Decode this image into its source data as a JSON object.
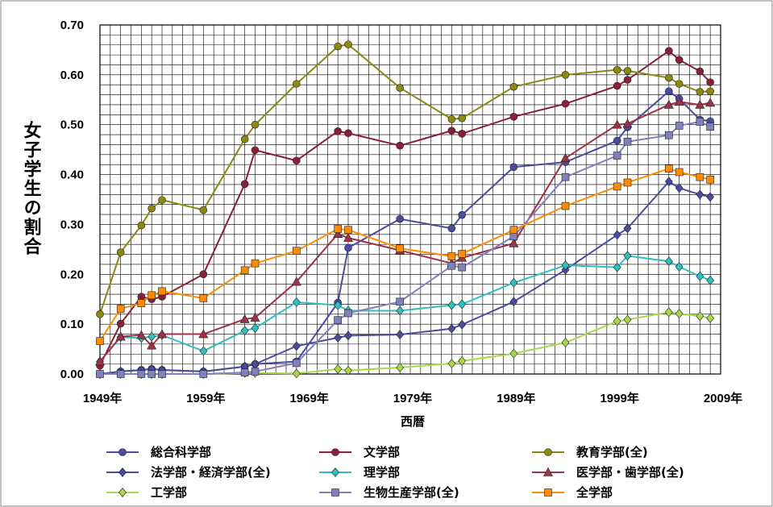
{
  "chart_data": {
    "type": "line",
    "xlabel": "西暦",
    "ylabel": "女子学生の割合",
    "xlim": [
      1949,
      2009
    ],
    "ylim": [
      0,
      0.7
    ],
    "x_tick_values": [
      1949,
      1959,
      1969,
      1979,
      1989,
      1999,
      2009
    ],
    "x_tick_labels": [
      "1949年",
      "1959年",
      "1969年",
      "1979年",
      "1989年",
      "1999年",
      "2009年"
    ],
    "y_tick_values": [
      0,
      0.1,
      0.2,
      0.3,
      0.4,
      0.5,
      0.6,
      0.7
    ],
    "y_tick_labels": [
      "0.00",
      "0.10",
      "0.20",
      "0.30",
      "0.40",
      "0.50",
      "0.60",
      "0.70"
    ],
    "grid": true,
    "legend_position": "bottom",
    "series": [
      {
        "name": "総合科学部",
        "color": "#4B4BA0",
        "marker": "circle",
        "x": [
          1949,
          1951,
          1953,
          1954,
          1955,
          1959,
          1963,
          1964,
          1968,
          1972,
          1973,
          1978,
          1983,
          1984,
          1989,
          1994,
          1999,
          2000,
          2004,
          2005,
          2007,
          2008
        ],
        "y": [
          0,
          0.005,
          0.008,
          0.01,
          0.008,
          0.005,
          0.015,
          0.02,
          0.025,
          0.143,
          0.253,
          0.311,
          0.292,
          0.319,
          0.415,
          0.425,
          0.468,
          0.495,
          0.567,
          0.552,
          0.51,
          0.507
        ]
      },
      {
        "name": "文学部",
        "color": "#8B1F3A",
        "marker": "circle",
        "x": [
          1949,
          1951,
          1953,
          1954,
          1955,
          1959,
          1963,
          1964,
          1968,
          1972,
          1973,
          1978,
          1983,
          1984,
          1989,
          1994,
          1999,
          2000,
          2004,
          2005,
          2007,
          2008
        ],
        "y": [
          0.017,
          0.101,
          0.155,
          0.15,
          0.155,
          0.2,
          0.381,
          0.449,
          0.428,
          0.487,
          0.483,
          0.458,
          0.488,
          0.482,
          0.516,
          0.542,
          0.578,
          0.59,
          0.648,
          0.63,
          0.607,
          0.585
        ]
      },
      {
        "name": "教育学部(全)",
        "color": "#8A8A10",
        "marker": "circle",
        "x": [
          1949,
          1951,
          1953,
          1954,
          1955,
          1959,
          1963,
          1964,
          1968,
          1972,
          1973,
          1978,
          1983,
          1984,
          1989,
          1994,
          1999,
          2000,
          2004,
          2005,
          2007,
          2008
        ],
        "y": [
          0.12,
          0.244,
          0.298,
          0.332,
          0.349,
          0.329,
          0.471,
          0.5,
          0.582,
          0.657,
          0.661,
          0.574,
          0.511,
          0.513,
          0.576,
          0.6,
          0.61,
          0.608,
          0.594,
          0.582,
          0.566,
          0.567
        ]
      },
      {
        "name": "法学部・経済学部(全)",
        "color": "#4B4BA0",
        "marker": "diamond",
        "x": [
          1949,
          1951,
          1953,
          1954,
          1955,
          1959,
          1963,
          1964,
          1968,
          1972,
          1973,
          1978,
          1983,
          1984,
          1989,
          1994,
          1999,
          2000,
          2004,
          2005,
          2007,
          2008
        ],
        "y": [
          0,
          0.005,
          0.008,
          0.01,
          0.008,
          0.005,
          0.015,
          0.02,
          0.056,
          0.073,
          0.077,
          0.079,
          0.091,
          0.099,
          0.145,
          0.209,
          0.279,
          0.292,
          0.386,
          0.373,
          0.36,
          0.355
        ]
      },
      {
        "name": "理学部",
        "color": "#2FBFBF",
        "marker": "diamond",
        "x": [
          1949,
          1951,
          1953,
          1954,
          1955,
          1959,
          1963,
          1964,
          1968,
          1972,
          1973,
          1978,
          1983,
          1984,
          1989,
          1994,
          1999,
          2000,
          2004,
          2005,
          2007,
          2008
        ],
        "y": [
          0.025,
          0.074,
          0.072,
          0.075,
          0.078,
          0.046,
          0.087,
          0.092,
          0.144,
          0.138,
          0.127,
          0.127,
          0.138,
          0.14,
          0.183,
          0.218,
          0.214,
          0.237,
          0.226,
          0.215,
          0.196,
          0.188
        ]
      },
      {
        "name": "医学部・歯学部(全)",
        "color": "#A03248",
        "marker": "triangle",
        "x": [
          1949,
          1951,
          1953,
          1954,
          1955,
          1959,
          1963,
          1964,
          1968,
          1972,
          1973,
          1978,
          1983,
          1984,
          1989,
          1994,
          1999,
          2000,
          2004,
          2005,
          2007,
          2008
        ],
        "y": [
          0.025,
          0.075,
          0.078,
          0.057,
          0.08,
          0.08,
          0.11,
          0.113,
          0.185,
          0.281,
          0.273,
          0.248,
          0.222,
          0.233,
          0.262,
          0.433,
          0.5,
          0.502,
          0.54,
          0.546,
          0.54,
          0.544
        ]
      },
      {
        "name": "工学部",
        "color": "#A6D84A",
        "marker": "diamond",
        "x": [
          1949,
          1951,
          1953,
          1954,
          1955,
          1959,
          1963,
          1964,
          1968,
          1972,
          1973,
          1978,
          1983,
          1984,
          1989,
          1994,
          1999,
          2000,
          2004,
          2005,
          2007,
          2008
        ],
        "y": [
          0,
          0,
          0,
          0,
          0,
          0,
          0.002,
          0.002,
          0.001,
          0.01,
          0.007,
          0.013,
          0.021,
          0.026,
          0.041,
          0.063,
          0.106,
          0.109,
          0.124,
          0.121,
          0.116,
          0.112
        ]
      },
      {
        "name": "生物生産学部(全)",
        "color": "#8080BC",
        "marker": "square",
        "x": [
          1949,
          1951,
          1953,
          1954,
          1955,
          1959,
          1963,
          1964,
          1968,
          1972,
          1973,
          1978,
          1983,
          1984,
          1989,
          1994,
          1999,
          2000,
          2004,
          2005,
          2007,
          2008
        ],
        "y": [
          0,
          0,
          0,
          0,
          0,
          0,
          0.003,
          0.005,
          0.022,
          0.108,
          0.122,
          0.145,
          0.217,
          0.214,
          0.276,
          0.395,
          0.438,
          0.466,
          0.479,
          0.498,
          0.506,
          0.496
        ]
      },
      {
        "name": "全学部",
        "color": "#FF8C00",
        "marker": "square",
        "x": [
          1949,
          1951,
          1953,
          1954,
          1955,
          1959,
          1963,
          1964,
          1968,
          1972,
          1973,
          1978,
          1983,
          1984,
          1989,
          1994,
          1999,
          2000,
          2004,
          2005,
          2007,
          2008
        ],
        "y": [
          0.066,
          0.131,
          0.142,
          0.158,
          0.166,
          0.152,
          0.208,
          0.222,
          0.247,
          0.291,
          0.289,
          0.252,
          0.236,
          0.241,
          0.289,
          0.337,
          0.376,
          0.384,
          0.412,
          0.405,
          0.395,
          0.39
        ]
      }
    ]
  }
}
